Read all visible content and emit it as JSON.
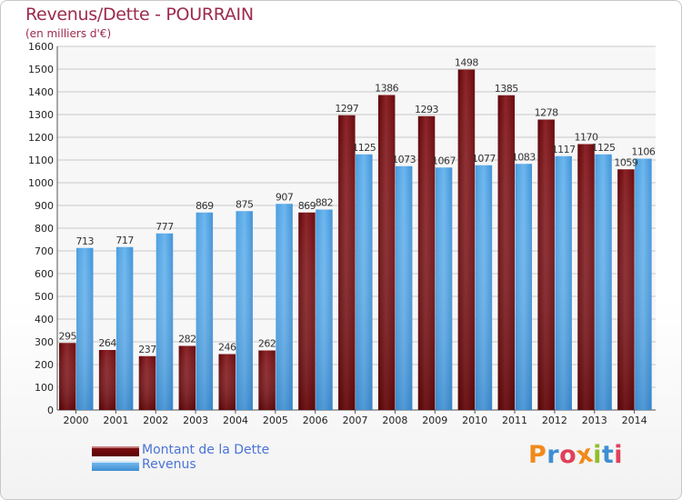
{
  "header": {
    "title": "Revenus/Dette - POURRAIN",
    "subtitle": "(en milliers d'€)"
  },
  "legend": {
    "debt_label": "Montant de la Dette",
    "revenue_label": "Revenus"
  },
  "logo": {
    "text": "Proxiti",
    "letter_colors": [
      "#f08a1c",
      "#3f8fd2",
      "#e0405a",
      "#f08a1c",
      "#8fbf2a",
      "#3f8fd2",
      "#e0405a"
    ]
  },
  "colors": {
    "debt": "#7a0f12",
    "revenue": "#55a7e6",
    "title": "#9c2a4d",
    "legend_text": "#4a73d6"
  },
  "chart_data": {
    "type": "bar",
    "title": "Revenus/Dette - POURRAIN",
    "subtitle": "(en milliers d'€)",
    "categories": [
      "2000",
      "2001",
      "2002",
      "2003",
      "2004",
      "2005",
      "2006",
      "2007",
      "2008",
      "2009",
      "2010",
      "2011",
      "2012",
      "2013",
      "2014"
    ],
    "series": [
      {
        "name": "Montant de la Dette",
        "values": [
          295,
          264,
          237,
          282,
          246,
          262,
          869,
          1297,
          1386,
          1293,
          1498,
          1385,
          1278,
          1170,
          1059
        ]
      },
      {
        "name": "Revenus",
        "values": [
          713,
          717,
          777,
          869,
          875,
          907,
          882,
          1125,
          1073,
          1067,
          1077,
          1083,
          1117,
          1125,
          1106
        ]
      }
    ],
    "value_labels": {
      "debt": [
        "295",
        "264",
        "237",
        "282",
        "246",
        "262",
        "869",
        "1297",
        "1386",
        "1293",
        "1498",
        "1385",
        "1278",
        "1170",
        "1059"
      ],
      "revenue": [
        "713",
        "717",
        "777",
        "869",
        "875",
        "907",
        "882",
        "1125",
        "1073",
        "1067",
        "1077",
        "1083",
        "1117",
        "1125",
        "1106"
      ]
    },
    "y_ticks": [
      "0",
      "100",
      "200",
      "300",
      "400",
      "500",
      "600",
      "700",
      "800",
      "900",
      "1000",
      "1100",
      "1200",
      "1300",
      "1400",
      "1500",
      "1600"
    ],
    "ylim": [
      0,
      1600
    ],
    "grid": true,
    "legend_position": "bottom-left"
  }
}
